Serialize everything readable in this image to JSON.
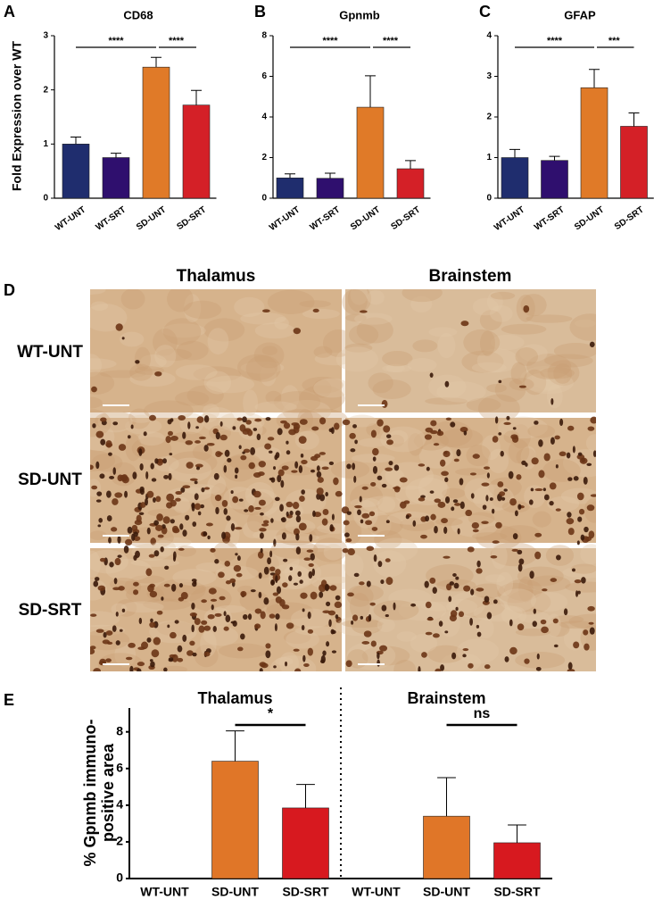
{
  "chart_data": [
    {
      "type": "bar",
      "panel_label": "A",
      "title": "CD68",
      "y_label": "Fold Expression over  WT",
      "categories": [
        "WT-UNT",
        "WT-SRT",
        "SD-UNT",
        "SD-SRT"
      ],
      "values": [
        1.0,
        0.75,
        2.42,
        1.72
      ],
      "errors": [
        0.13,
        0.08,
        0.18,
        0.27
      ],
      "colors": [
        "#1f2d6e",
        "#2f0f6e",
        "#e07a28",
        "#d42027"
      ],
      "ylim": [
        0,
        3
      ],
      "yticks": [
        0,
        1,
        2,
        3
      ],
      "significance": [
        "****",
        "****"
      ]
    },
    {
      "type": "bar",
      "panel_label": "B",
      "title": "Gpnmb",
      "categories": [
        "WT-UNT",
        "WT-SRT",
        "SD-UNT",
        "SD-SRT"
      ],
      "values": [
        1.0,
        0.98,
        4.48,
        1.45
      ],
      "errors": [
        0.2,
        0.25,
        1.55,
        0.4
      ],
      "colors": [
        "#1f2d6e",
        "#2f0f6e",
        "#e07a28",
        "#d42027"
      ],
      "ylim": [
        0,
        8
      ],
      "yticks": [
        0,
        2,
        4,
        6,
        8
      ],
      "significance": [
        "****",
        "****"
      ]
    },
    {
      "type": "bar",
      "panel_label": "C",
      "title": "GFAP",
      "categories": [
        "WT-UNT",
        "WT-SRT",
        "SD-UNT",
        "SD-SRT"
      ],
      "values": [
        1.0,
        0.93,
        2.72,
        1.77
      ],
      "errors": [
        0.2,
        0.1,
        0.45,
        0.33
      ],
      "colors": [
        "#1f2d6e",
        "#2f0f6e",
        "#e07a28",
        "#d42027"
      ],
      "ylim": [
        0,
        4
      ],
      "yticks": [
        0,
        1,
        2,
        3,
        4
      ],
      "significance": [
        "****",
        "***"
      ]
    },
    {
      "type": "bar",
      "panel_label": "E",
      "y_label": [
        "% Gpnmb immuno-",
        "positive area"
      ],
      "group_labels": [
        "Thalamus",
        "Brainstem"
      ],
      "categories": [
        "WT-UNT",
        "SD-UNT",
        "SD-SRT",
        "WT-UNT",
        "SD-UNT",
        "SD-SRT"
      ],
      "values": [
        0,
        6.4,
        3.85,
        0,
        3.4,
        1.95
      ],
      "errors": [
        null,
        1.65,
        1.28,
        null,
        2.1,
        0.97
      ],
      "colors": [
        "#e07628",
        "#e07628",
        "#d7191f",
        "#e07628",
        "#e07628",
        "#d7191f"
      ],
      "ylim": [
        0,
        9.3
      ],
      "yticks": [
        0,
        2,
        4,
        6,
        8
      ],
      "significance": [
        "*",
        "ns"
      ]
    }
  ],
  "image_panel": {
    "panel_label": "D",
    "columns": [
      "Thalamus",
      "Brainstem"
    ],
    "rows": [
      "WT-UNT",
      "SD-UNT",
      "SD-SRT"
    ]
  }
}
